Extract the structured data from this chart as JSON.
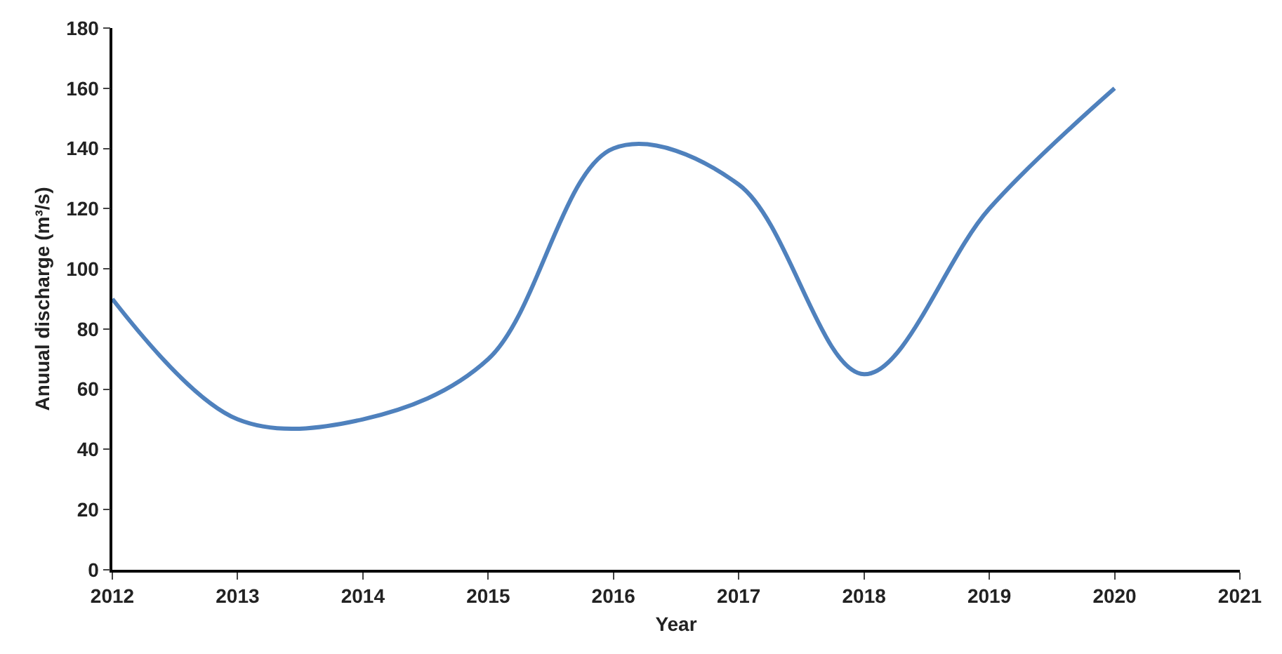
{
  "chart_data": {
    "type": "line",
    "xlabel": "Year",
    "ylabel": "Anuual discharge (m³/s)",
    "x": [
      2012,
      2013,
      2014,
      2015,
      2016,
      2017,
      2018,
      2019,
      2020
    ],
    "series": [
      {
        "color": "#4f81bd",
        "values": [
          90,
          50,
          50,
          70,
          140,
          128,
          65,
          120,
          160
        ]
      }
    ],
    "xlim": [
      2012,
      2021
    ],
    "xticks": [
      2012,
      2013,
      2014,
      2015,
      2016,
      2017,
      2018,
      2019,
      2020,
      2021
    ],
    "ylim": [
      0,
      180
    ],
    "yticks": [
      0,
      20,
      40,
      60,
      80,
      100,
      120,
      140,
      160,
      180
    ],
    "grid": false,
    "marker": "none",
    "line_style": "solid"
  }
}
